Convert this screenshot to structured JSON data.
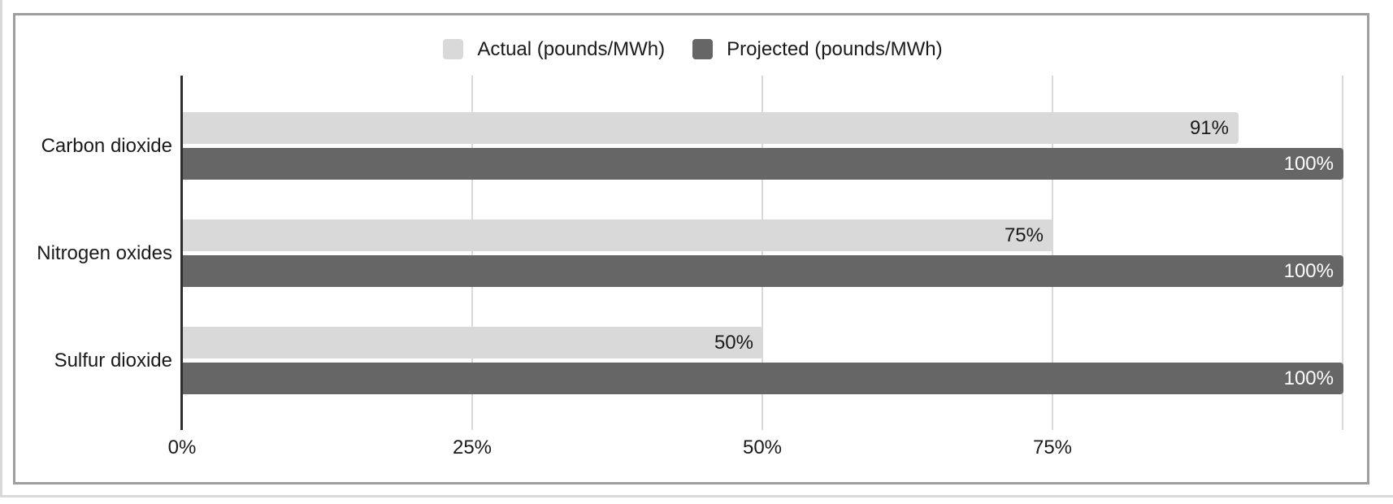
{
  "legend": {
    "items": [
      {
        "label": "Actual (pounds/MWh)",
        "color": "#d9d9d9"
      },
      {
        "label": "Projected (pounds/MWh)",
        "color": "#666666"
      }
    ]
  },
  "chart_data": {
    "type": "bar",
    "orientation": "horizontal",
    "title": "",
    "categories": [
      "Carbon dioxide",
      "Nitrogen oxides",
      "Sulfur dioxide"
    ],
    "series": [
      {
        "name": "Actual (pounds/MWh)",
        "color": "#d9d9d9",
        "values": [
          91,
          75,
          50
        ],
        "data_labels": [
          "91%",
          "75%",
          "50%"
        ]
      },
      {
        "name": "Projected (pounds/MWh)",
        "color": "#666666",
        "values": [
          100,
          100,
          100
        ],
        "data_labels": [
          "100%",
          "100%",
          "100%"
        ]
      }
    ],
    "x_axis": {
      "range": [
        0,
        100
      ],
      "ticks": [
        {
          "value": 0,
          "label": "0%"
        },
        {
          "value": 25,
          "label": "25%"
        },
        {
          "value": 50,
          "label": "50%"
        },
        {
          "value": 75,
          "label": "75%"
        }
      ],
      "gridline_values": [
        25,
        50,
        75,
        100
      ]
    },
    "grid": true,
    "legend_position": "top"
  },
  "colors": {
    "axis": "#2e2e2e",
    "gridline": "#d9d9d9",
    "frame_border": "#9e9e9e",
    "page_edge": "#d9d9d9",
    "value_label_on_light": "#1a1a1a",
    "value_label_on_dark": "#ffffff"
  }
}
